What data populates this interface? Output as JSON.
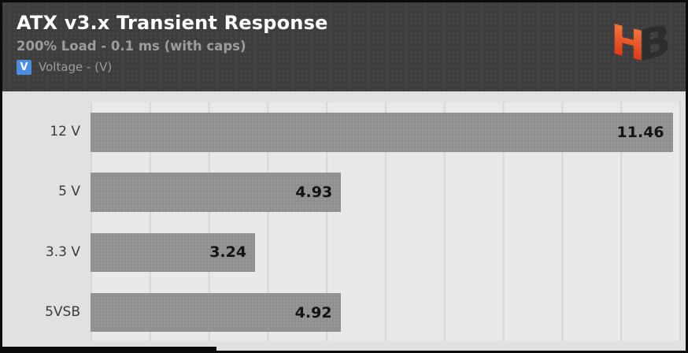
{
  "header": {
    "title": "ATX v3.x Transient Response",
    "subtitle": "200% Load - 0.1 ms (with caps)",
    "legend": {
      "chip": "V",
      "label": "Voltage - (V)"
    },
    "logo": {
      "h": "H",
      "b": "B"
    }
  },
  "colors": {
    "header_bg": "#3e3e3e",
    "title_text": "#ffffff",
    "subtitle_text": "#9d9d9d",
    "legend_chip": "#4a8de2",
    "chart_bg": "#e1e1e1",
    "plot_bg": "#e9e9e9",
    "gridline": "#d7d7d7",
    "bar": "#8f8f8f",
    "value_text": "#131313",
    "label_text": "#3b3b3b",
    "logo_orange": "#f8833f",
    "logo_red": "#d7260f",
    "logo_dark": "#2d2d2d"
  },
  "chart_data": {
    "type": "bar",
    "orientation": "horizontal",
    "title": "ATX v3.x Transient Response",
    "subtitle": "200% Load - 0.1 ms (with caps)",
    "unit": "V",
    "legend_entries": [
      "Voltage - (V)"
    ],
    "legend_position": "top-left",
    "categories": [
      "12 V",
      "5 V",
      "3.3 V",
      "5VSB"
    ],
    "values": [
      11.46,
      4.93,
      3.24,
      4.92
    ],
    "value_labels": [
      "11.46",
      "4.93",
      "3.24",
      "4.92"
    ],
    "xlim": [
      0,
      11.62
    ],
    "gridline_count": 10,
    "grid": true,
    "x_tick_labels_shown": false
  }
}
